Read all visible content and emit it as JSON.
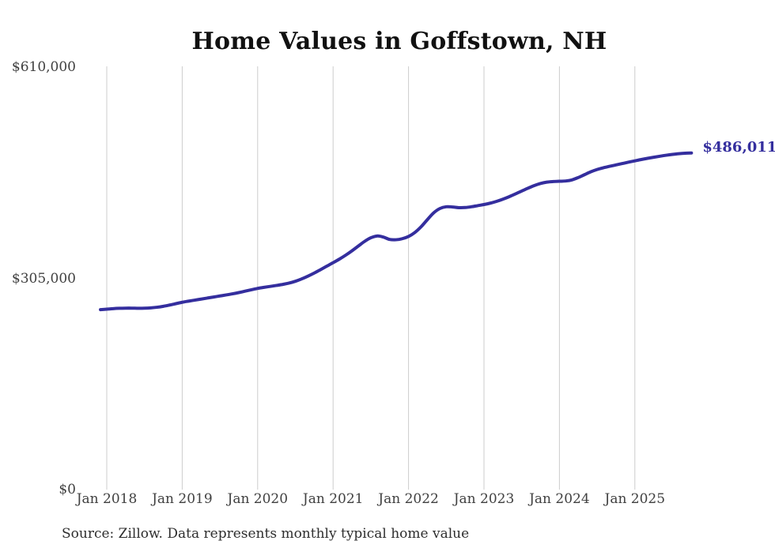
{
  "chart_data": {
    "type": "line",
    "title": "Home Values in Goffstown, NH",
    "source_note": "Source: Zillow. Data represents monthly typical home value",
    "end_label": "$486,011",
    "latest_value": 486011,
    "start_month": "Dec 2017",
    "end_month": "Oct 2025",
    "months_before_first_tick": 1,
    "x_ticks": [
      "Jan 2018",
      "Jan 2019",
      "Jan 2020",
      "Jan 2021",
      "Jan 2022",
      "Jan 2023",
      "Jan 2024",
      "Jan 2025"
    ],
    "y_ticks": [
      {
        "value": 0,
        "label": "$0"
      },
      {
        "value": 305000,
        "label": "$305,000"
      },
      {
        "value": 610000,
        "label": "$610,000"
      }
    ],
    "ylim": [
      0,
      610000
    ],
    "grid": "vertical-only",
    "legend": "none",
    "series": [
      {
        "name": "Typical home value",
        "unit": "USD",
        "frequency": "monthly",
        "monthly_values": [
          259800,
          260500,
          261300,
          261800,
          262000,
          262000,
          261800,
          261900,
          262400,
          263300,
          264700,
          266500,
          268500,
          270500,
          272100,
          273600,
          275100,
          276600,
          278100,
          279600,
          281100,
          282700,
          284500,
          286500,
          288500,
          290500,
          292000,
          293400,
          294800,
          296300,
          298200,
          300800,
          304200,
          308200,
          312700,
          317600,
          322600,
          327600,
          332800,
          338500,
          344800,
          351600,
          358300,
          363600,
          366200,
          364600,
          361200,
          360800,
          362300,
          365500,
          371200,
          379500,
          389800,
          399600,
          405900,
          408400,
          408100,
          407100,
          407300,
          408400,
          410000,
          411600,
          413600,
          416200,
          419300,
          422900,
          426900,
          431100,
          435200,
          439000,
          442100,
          444000,
          444800,
          445200,
          445600,
          447200,
          450600,
          454800,
          458900,
          462200,
          464700,
          466800,
          468800,
          470800,
          472800,
          474700,
          476600,
          478300,
          479900,
          481400,
          482800,
          484000,
          485000,
          485700,
          486011
        ]
      }
    ],
    "colors": {
      "line": "#342e9e",
      "grid": "#cccccc",
      "title": "#111111",
      "tick_label": "#404040",
      "source": "#2e2e2e"
    }
  }
}
